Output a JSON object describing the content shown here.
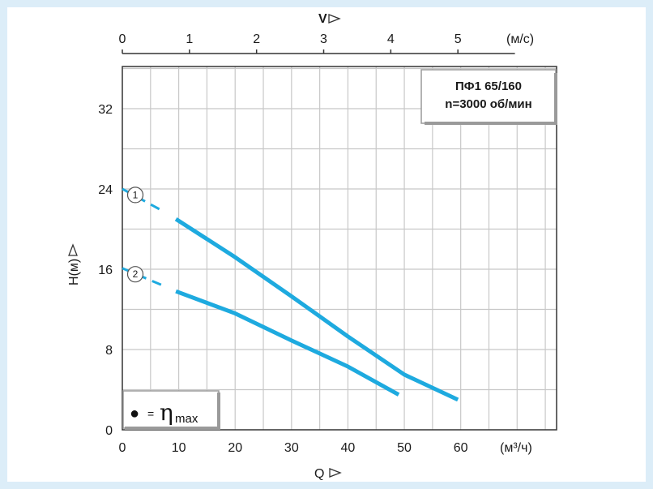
{
  "chart_data": {
    "type": "line",
    "info_box": [
      "ПФ1 65/160",
      "n=3000 об/мин"
    ],
    "x_axis": {
      "label": "Q",
      "unit": "(м³/ч)",
      "ticks": [
        0,
        10,
        20,
        30,
        40,
        50,
        60
      ],
      "range": [
        0,
        77
      ]
    },
    "y_axis": {
      "label": "H(м)",
      "ticks": [
        0,
        8,
        16,
        24,
        32
      ],
      "range": [
        0,
        36.2
      ]
    },
    "top_axis": {
      "label": "V",
      "unit": "(м/с)",
      "ticks": [
        0,
        1,
        2,
        3,
        4,
        5
      ],
      "q_per_unit": 11.9
    },
    "series": [
      {
        "marker": "1",
        "dashed": [
          [
            0,
            24.0
          ],
          [
            7.5,
            21.7
          ]
        ],
        "solid": [
          [
            9.5,
            21.0
          ],
          [
            20,
            17.2
          ],
          [
            30,
            13.3
          ],
          [
            40,
            9.3
          ],
          [
            50,
            5.5
          ],
          [
            59.5,
            3.0
          ]
        ]
      },
      {
        "marker": "2",
        "dashed": [
          [
            0,
            16.1
          ],
          [
            7.5,
            14.3
          ]
        ],
        "solid": [
          [
            9.5,
            13.8
          ],
          [
            20,
            11.6
          ],
          [
            30,
            8.9
          ],
          [
            40,
            6.3
          ],
          [
            49,
            3.5
          ]
        ]
      }
    ],
    "legend": {
      "symbol": "●",
      "eq": "=",
      "eta": "η",
      "sub": "max"
    },
    "grid": true,
    "colors": {
      "curve": "#1eaadf",
      "grid": "#c8c8c8",
      "axis": "#333333"
    }
  }
}
